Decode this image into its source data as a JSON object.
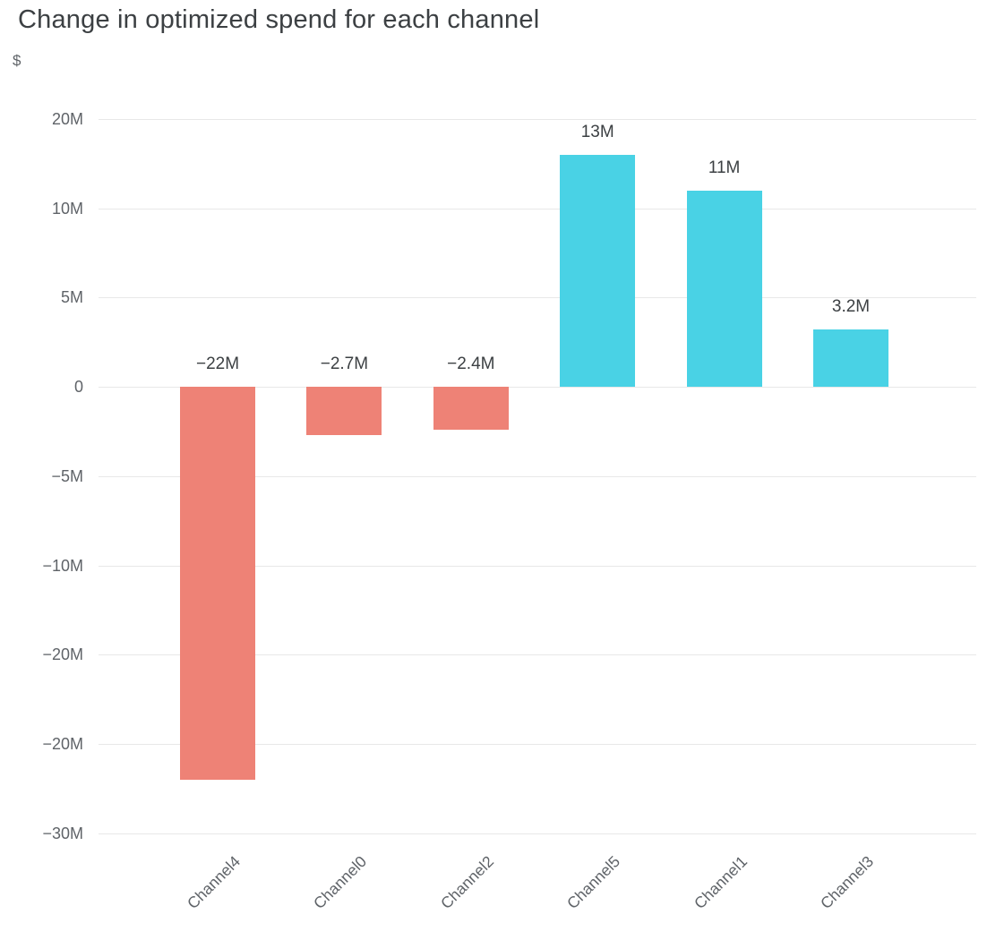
{
  "page": {
    "background": "#ffffff"
  },
  "chart_data": {
    "type": "bar",
    "title": "Change in optimized spend for each channel",
    "ylabel": "$",
    "categories": [
      "Channel4",
      "Channel0",
      "Channel2",
      "Channel5",
      "Channel1",
      "Channel3"
    ],
    "values": [
      -22,
      -2.7,
      -2.4,
      13,
      11,
      3.2
    ],
    "value_unit": "M",
    "bar_labels": [
      "−22M",
      "−2.7M",
      "−2.4M",
      "13M",
      "11M",
      "3.2M"
    ],
    "y_axis": {
      "tick_values": [
        15,
        10,
        5,
        0,
        -5,
        -10,
        -15,
        -20,
        -25
      ],
      "tick_labels": [
        "20M",
        "10M",
        "5M",
        "0",
        "−5M",
        "−10M",
        "−20M",
        "−20M",
        "−30M"
      ]
    },
    "ylim": [
      -25,
      15
    ],
    "grid": true,
    "legend": "none",
    "colors": {
      "positive": "#49d2e5",
      "negative": "#ee8276",
      "title": "#3c4043",
      "axis_text": "#5f6368",
      "bar_label_text": "#3c4043",
      "gridline": "#e8e8e8"
    }
  }
}
